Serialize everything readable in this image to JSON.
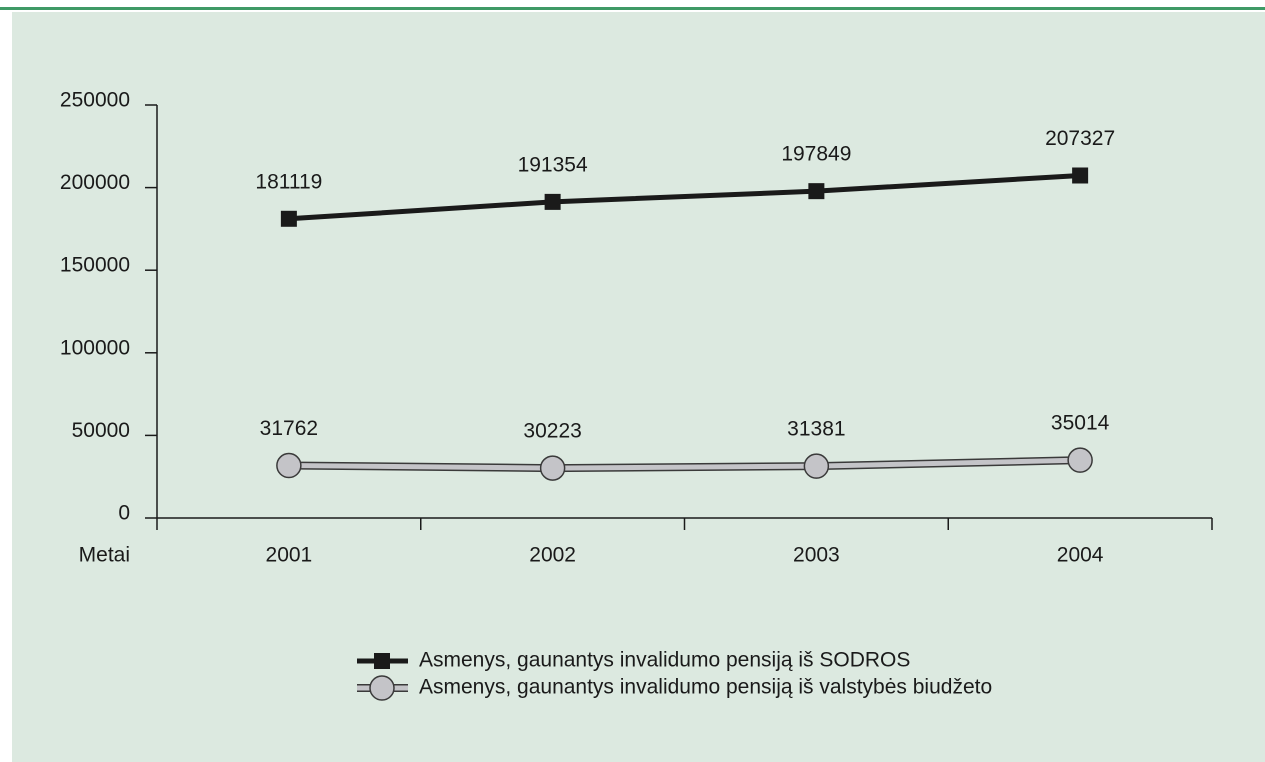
{
  "chart_data": {
    "type": "line",
    "x_label": "Metai",
    "categories": [
      "2001",
      "2002",
      "2003",
      "2004"
    ],
    "series": [
      {
        "name": "Asmenys, gaunantys invalidumo pensiją iš SODROS",
        "color": "#1a1a1a",
        "marker": "square",
        "values": [
          181119,
          191354,
          197849,
          207327
        ]
      },
      {
        "name": "Asmenys, gaunantys invalidumo pensiją iš valstybės biudžeto",
        "color": "#c4c4c8",
        "marker": "circle",
        "values": [
          31762,
          30223,
          31381,
          35014
        ]
      }
    ],
    "ylim": [
      0,
      250000
    ],
    "yticks": [
      0,
      50000,
      100000,
      150000,
      200000,
      250000
    ],
    "data_labels": true
  }
}
